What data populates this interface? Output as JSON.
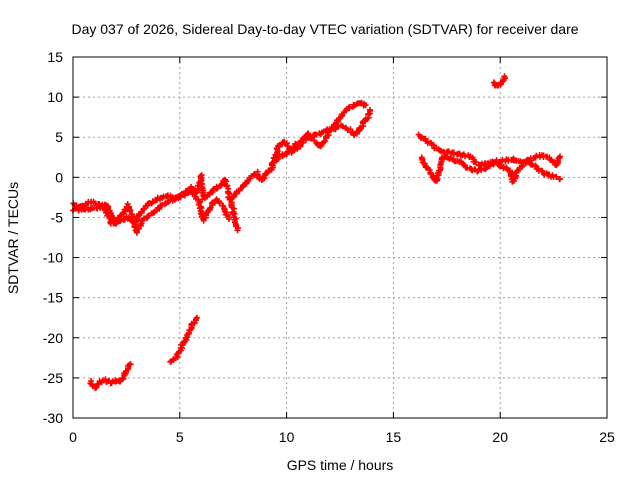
{
  "chart_data": {
    "type": "scatter",
    "title": "Day 037 of 2026, Sidereal Day-to-day VTEC variation (SDTVAR) for receiver dare",
    "xlabel": "GPS time / hours",
    "ylabel": "SDTVAR / TECUs",
    "xlim": [
      0,
      25
    ],
    "ylim": [
      -30,
      15
    ],
    "xticks": [
      0,
      5,
      10,
      15,
      20,
      25
    ],
    "yticks": [
      -30,
      -25,
      -20,
      -15,
      -10,
      -5,
      0,
      5,
      10,
      15
    ],
    "grid": true,
    "marker": "+",
    "color": "#ff0000",
    "series": [
      {
        "name": "SDTVAR",
        "segments": [
          [
            [
              0.0,
              -3.3
            ],
            [
              0.4,
              -3.7
            ],
            [
              0.8,
              -3.0
            ],
            [
              1.2,
              -3.4
            ],
            [
              1.6,
              -3.6
            ],
            [
              1.8,
              -4.8
            ],
            [
              2.0,
              -5.5
            ],
            [
              2.3,
              -4.6
            ],
            [
              2.6,
              -3.4
            ],
            [
              2.9,
              -5.8
            ],
            [
              3.2,
              -4.2
            ],
            [
              3.6,
              -3.3
            ],
            [
              4.0,
              -2.6
            ],
            [
              4.4,
              -2.3
            ],
            [
              4.8,
              -2.6
            ],
            [
              5.2,
              -2.0
            ],
            [
              5.5,
              -1.2
            ],
            [
              5.8,
              -1.9
            ],
            [
              6.0,
              0.2
            ],
            [
              6.1,
              -2.6
            ],
            [
              6.4,
              -2.0
            ],
            [
              6.8,
              -1.2
            ],
            [
              7.1,
              -0.3
            ],
            [
              7.3,
              -2.2
            ],
            [
              7.5,
              -4.0
            ],
            [
              7.7,
              -6.6
            ]
          ],
          [
            [
              0.0,
              -4.0
            ],
            [
              0.5,
              -4.0
            ],
            [
              1.0,
              -3.8
            ],
            [
              1.5,
              -3.8
            ],
            [
              1.8,
              -5.8
            ],
            [
              2.2,
              -5.5
            ],
            [
              2.5,
              -5.0
            ],
            [
              2.8,
              -5.5
            ],
            [
              3.0,
              -6.8
            ],
            [
              3.3,
              -5.2
            ],
            [
              3.7,
              -4.5
            ],
            [
              4.0,
              -3.8
            ],
            [
              4.5,
              -3.0
            ],
            [
              5.0,
              -2.4
            ],
            [
              5.5,
              -1.7
            ],
            [
              5.9,
              -3.0
            ],
            [
              6.1,
              -5.3
            ],
            [
              6.4,
              -3.8
            ],
            [
              6.7,
              -2.8
            ],
            [
              7.0,
              -3.6
            ],
            [
              7.3,
              -5.2
            ]
          ],
          [
            [
              7.5,
              -2.5
            ],
            [
              7.8,
              -1.6
            ],
            [
              8.2,
              -0.4
            ],
            [
              8.6,
              0.6
            ],
            [
              8.8,
              -0.4
            ],
            [
              9.1,
              0.5
            ],
            [
              9.3,
              1.0
            ],
            [
              9.6,
              3.8
            ],
            [
              9.9,
              4.5
            ],
            [
              10.2,
              3.2
            ],
            [
              10.6,
              3.8
            ],
            [
              11.0,
              5.5
            ],
            [
              11.3,
              4.5
            ],
            [
              11.6,
              3.8
            ],
            [
              12.1,
              6.2
            ],
            [
              12.4,
              7.0
            ],
            [
              12.7,
              8.2
            ],
            [
              13.0,
              8.8
            ],
            [
              13.4,
              9.3
            ],
            [
              13.7,
              9.0
            ]
          ],
          [
            [
              9.3,
              1.6
            ],
            [
              9.6,
              2.4
            ],
            [
              10.0,
              3.0
            ],
            [
              10.5,
              4.2
            ],
            [
              10.9,
              4.8
            ],
            [
              11.3,
              5.2
            ],
            [
              11.8,
              5.8
            ],
            [
              12.2,
              6.0
            ],
            [
              12.5,
              6.5
            ],
            [
              12.9,
              6.0
            ],
            [
              13.2,
              5.2
            ],
            [
              13.5,
              6.3
            ],
            [
              13.8,
              7.5
            ],
            [
              13.9,
              8.4
            ]
          ],
          [
            [
              16.2,
              5.2
            ],
            [
              16.6,
              4.5
            ],
            [
              17.0,
              3.5
            ],
            [
              17.4,
              3.2
            ],
            [
              17.8,
              3.0
            ],
            [
              18.2,
              2.8
            ],
            [
              18.6,
              2.6
            ],
            [
              19.0,
              1.5
            ],
            [
              19.4,
              1.7
            ],
            [
              19.8,
              2.0
            ],
            [
              20.2,
              2.1
            ],
            [
              20.6,
              2.3
            ],
            [
              21.0,
              1.8
            ],
            [
              21.4,
              2.2
            ],
            [
              21.8,
              2.7
            ],
            [
              22.2,
              2.5
            ],
            [
              22.6,
              1.5
            ],
            [
              22.8,
              2.6
            ]
          ],
          [
            [
              16.3,
              2.5
            ],
            [
              16.5,
              1.3
            ],
            [
              16.8,
              0.4
            ],
            [
              17.0,
              -0.5
            ],
            [
              17.3,
              2.6
            ],
            [
              17.7,
              2.3
            ],
            [
              18.0,
              2.0
            ],
            [
              18.3,
              1.5
            ],
            [
              18.6,
              1.0
            ],
            [
              19.0,
              0.8
            ],
            [
              19.4,
              1.3
            ],
            [
              19.8,
              1.8
            ],
            [
              20.2,
              1.2
            ],
            [
              20.5,
              0.6
            ],
            [
              20.6,
              -0.5
            ],
            [
              20.8,
              0.8
            ],
            [
              21.2,
              2.0
            ],
            [
              21.6,
              1.5
            ],
            [
              22.0,
              0.5
            ],
            [
              22.4,
              0.2
            ],
            [
              22.8,
              -0.2
            ]
          ],
          [
            [
              19.7,
              11.7
            ],
            [
              19.9,
              11.4
            ],
            [
              20.1,
              12.0
            ],
            [
              20.2,
              12.6
            ]
          ],
          [
            [
              0.8,
              -25.5
            ],
            [
              1.0,
              -26.3
            ],
            [
              1.2,
              -25.6
            ],
            [
              1.5,
              -25.3
            ],
            [
              1.8,
              -25.6
            ],
            [
              2.0,
              -25.4
            ],
            [
              2.3,
              -25.3
            ],
            [
              2.5,
              -24.2
            ],
            [
              2.6,
              -23.6
            ],
            [
              2.7,
              -23.3
            ]
          ],
          [
            [
              4.6,
              -23.0
            ],
            [
              4.8,
              -22.6
            ],
            [
              5.0,
              -21.5
            ],
            [
              5.2,
              -20.5
            ],
            [
              5.4,
              -19.5
            ],
            [
              5.6,
              -18.3
            ],
            [
              5.8,
              -17.5
            ]
          ]
        ]
      }
    ]
  }
}
